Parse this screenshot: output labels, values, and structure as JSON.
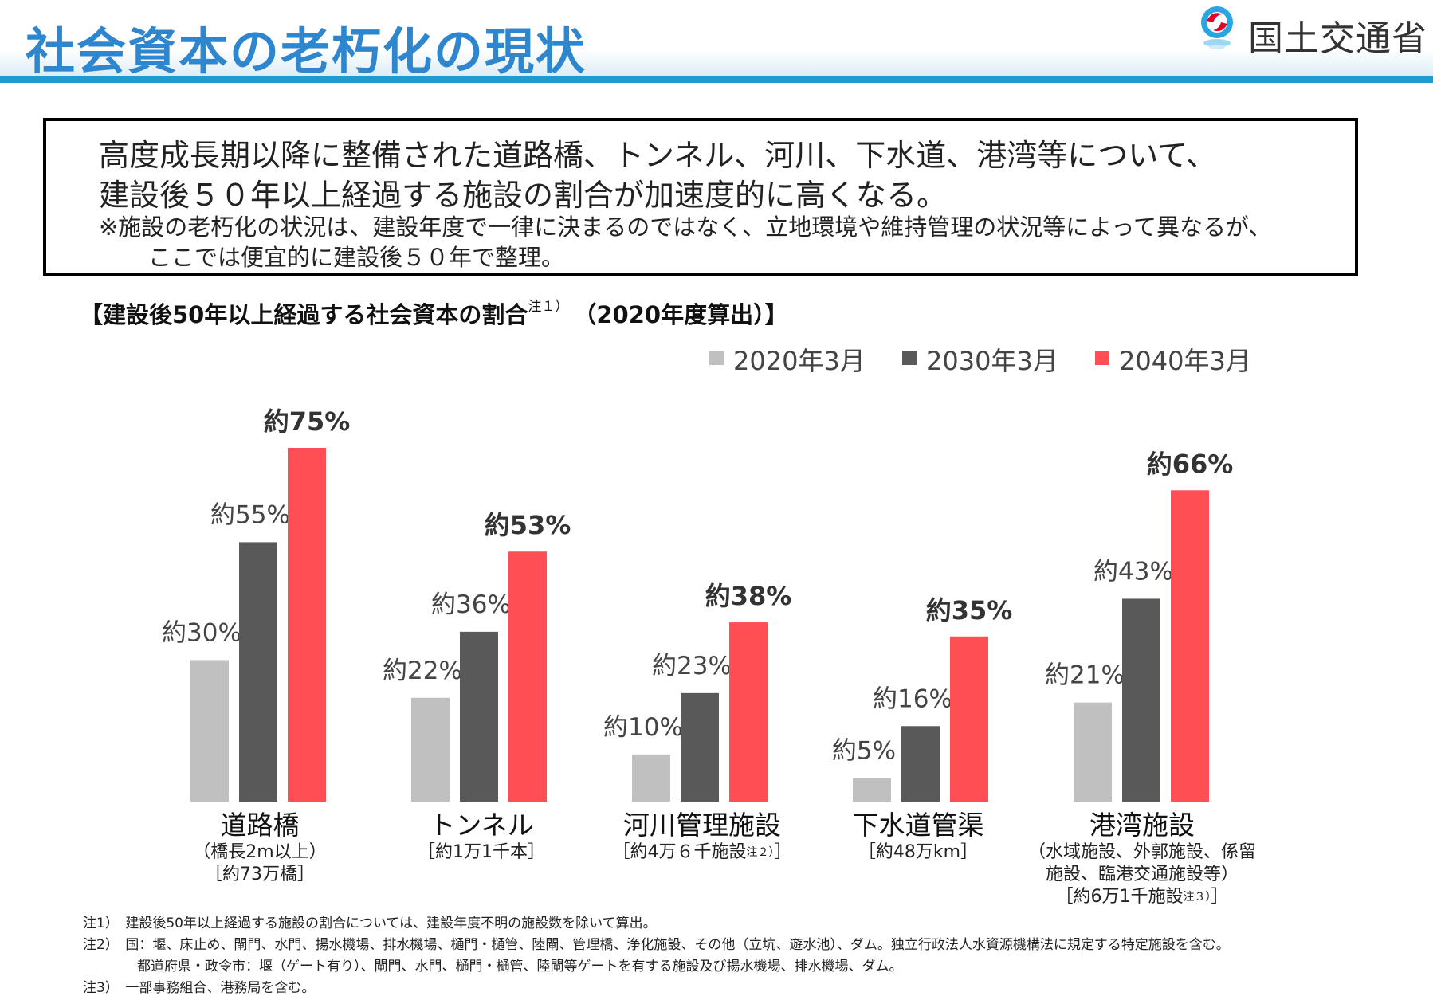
{
  "header": {
    "title": "社会資本の老朽化の現状",
    "logo_text": "国土交通省"
  },
  "summary": {
    "line1": "高度成長期以降に整備された道路橋、トンネル、河川、下水道、港湾等について、",
    "line2": "建設後５０年以上経過する施設の割合が加速度的に高くなる。",
    "line3": "※施設の老朽化の状況は、建設年度で一律に決まるのではなく、立地環境や維持管理の状況等によって異なるが、",
    "line4": "ここでは便宜的に建設後５０年で整理。"
  },
  "chart_heading": {
    "main": "【建設後50年以上経過する社会資本の割合",
    "note_mark": "注１）",
    "tail": "　（2020年度算出）】"
  },
  "legend": [
    {
      "label": "2020年3月",
      "color": "#c0c0c0"
    },
    {
      "label": "2030年3月",
      "color": "#595959"
    },
    {
      "label": "2040年3月",
      "color": "#ff4f55"
    }
  ],
  "chart_data": {
    "type": "bar",
    "title": "【建設後50年以上経過する社会資本の割合注１）（2020年度算出）】",
    "categories": [
      "道路橋",
      "トンネル",
      "河川管理施設",
      "下水道管渠",
      "港湾施設"
    ],
    "series": [
      {
        "name": "2020年3月",
        "color": "#c0c0c0",
        "values": [
          30,
          22,
          10,
          5,
          21
        ],
        "labels": [
          "約30%",
          "約22%",
          "約10%",
          "約5%",
          "約21%"
        ]
      },
      {
        "name": "2030年3月",
        "color": "#595959",
        "values": [
          55,
          36,
          23,
          16,
          43
        ],
        "labels": [
          "約55%",
          "約36%",
          "約23%",
          "約16%",
          "約43%"
        ]
      },
      {
        "name": "2040年3月",
        "color": "#ff4f55",
        "values": [
          75,
          53,
          38,
          35,
          66
        ],
        "labels": [
          "約75%",
          "約53%",
          "約38%",
          "約35%",
          "約66%"
        ]
      }
    ],
    "ylim": [
      0,
      80
    ],
    "grid": false,
    "legend_position": "top-right"
  },
  "categories_detail": [
    {
      "name": "道路橋",
      "sub": [
        "（橋長2m以上）",
        "［約73万橋］"
      ]
    },
    {
      "name": "トンネル",
      "sub": [
        "［約1万1千本］"
      ]
    },
    {
      "name": "河川管理施設",
      "sub": [
        "［約4万６千施設",
        "注２）",
        "］"
      ]
    },
    {
      "name": "下水道管渠",
      "sub": [
        "［約48万km］"
      ]
    },
    {
      "name": "港湾施設",
      "sub": [
        "（水域施設、外郭施設、係留",
        "施設、臨港交通施設等）",
        "［約6万1千施設",
        "注３）",
        "］"
      ]
    }
  ],
  "notes": [
    "注1）　建設後50年以上経過する施設の割合については、建設年度不明の施設数を除いて算出。",
    "注2）　国：堰、床止め、閘門、水門、揚水機場、排水機場、樋門・樋管、陸閘、管理橋、浄化施設、その他（立坑、遊水池）、ダム。独立行政法人水資源機構法に規定する特定施設を含む。",
    "　　　　都道府県・政令市：堰（ゲート有り）、閘門、水門、樋門・樋管、陸閘等ゲートを有する施設及び揚水機場、排水機場、ダム。",
    "注3）　一部事務組合、港務局を含む。"
  ]
}
